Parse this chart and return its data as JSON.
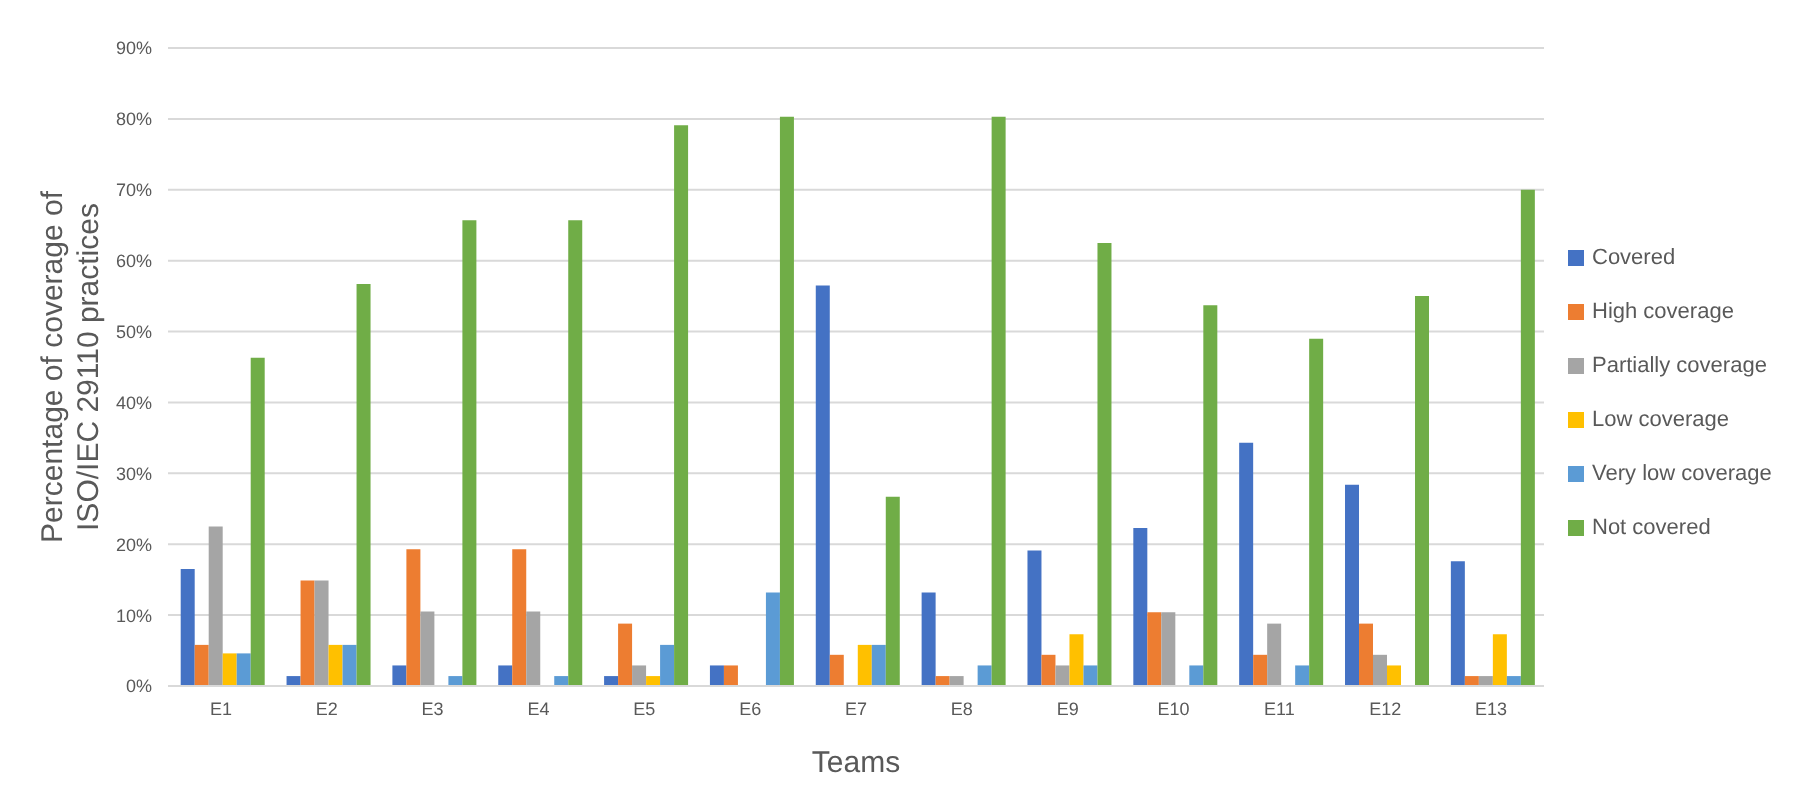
{
  "chart_data": {
    "type": "bar",
    "xlabel": "Teams",
    "ylabel": "Percentage of coverage of ISO/IEC 29110 practices",
    "categories": [
      "E1",
      "E2",
      "E3",
      "E4",
      "E5",
      "E6",
      "E7",
      "E8",
      "E9",
      "E10",
      "E11",
      "E12",
      "E13"
    ],
    "series": [
      {
        "name": "Covered",
        "color": "#4472c4",
        "values": [
          16.5,
          1.4,
          2.9,
          2.9,
          1.4,
          2.9,
          56.5,
          13.2,
          19.1,
          22.3,
          34.3,
          28.4,
          17.6
        ]
      },
      {
        "name": "High coverage",
        "color": "#ed7d31",
        "values": [
          5.8,
          14.9,
          19.3,
          19.3,
          8.8,
          2.9,
          4.4,
          1.4,
          4.4,
          10.4,
          4.4,
          8.8,
          1.4
        ]
      },
      {
        "name": "Partially coverage",
        "color": "#a5a5a5",
        "values": [
          22.5,
          14.9,
          10.5,
          10.5,
          2.9,
          0,
          0,
          1.4,
          2.9,
          10.4,
          8.8,
          4.4,
          1.4
        ]
      },
      {
        "name": "Low coverage",
        "color": "#ffc000",
        "values": [
          4.6,
          5.8,
          0,
          0,
          1.4,
          0,
          5.8,
          0,
          7.3,
          0,
          0,
          2.9,
          7.3
        ]
      },
      {
        "name": "Very low coverage",
        "color": "#5b9bd5",
        "values": [
          4.6,
          5.8,
          1.4,
          1.4,
          5.8,
          13.2,
          5.8,
          2.9,
          2.9,
          2.9,
          2.9,
          0,
          1.4
        ]
      },
      {
        "name": "Not covered",
        "color": "#70ad47",
        "values": [
          46.3,
          56.7,
          65.7,
          65.7,
          79.1,
          80.3,
          26.7,
          80.3,
          62.5,
          53.7,
          49.0,
          55.0,
          70.0
        ]
      }
    ],
    "ylim": [
      0,
      90
    ],
    "yticks": [
      {
        "value": 0,
        "label": "0%"
      },
      {
        "value": 10,
        "label": "10%"
      },
      {
        "value": 20,
        "label": "20%"
      },
      {
        "value": 30,
        "label": "30%"
      },
      {
        "value": 40,
        "label": "40%"
      },
      {
        "value": 50,
        "label": "50%"
      },
      {
        "value": 60,
        "label": "60%"
      },
      {
        "value": 70,
        "label": "70%"
      },
      {
        "value": 80,
        "label": "80%"
      },
      {
        "value": 90,
        "label": "90%"
      }
    ],
    "grid": "y",
    "legend": "right"
  }
}
